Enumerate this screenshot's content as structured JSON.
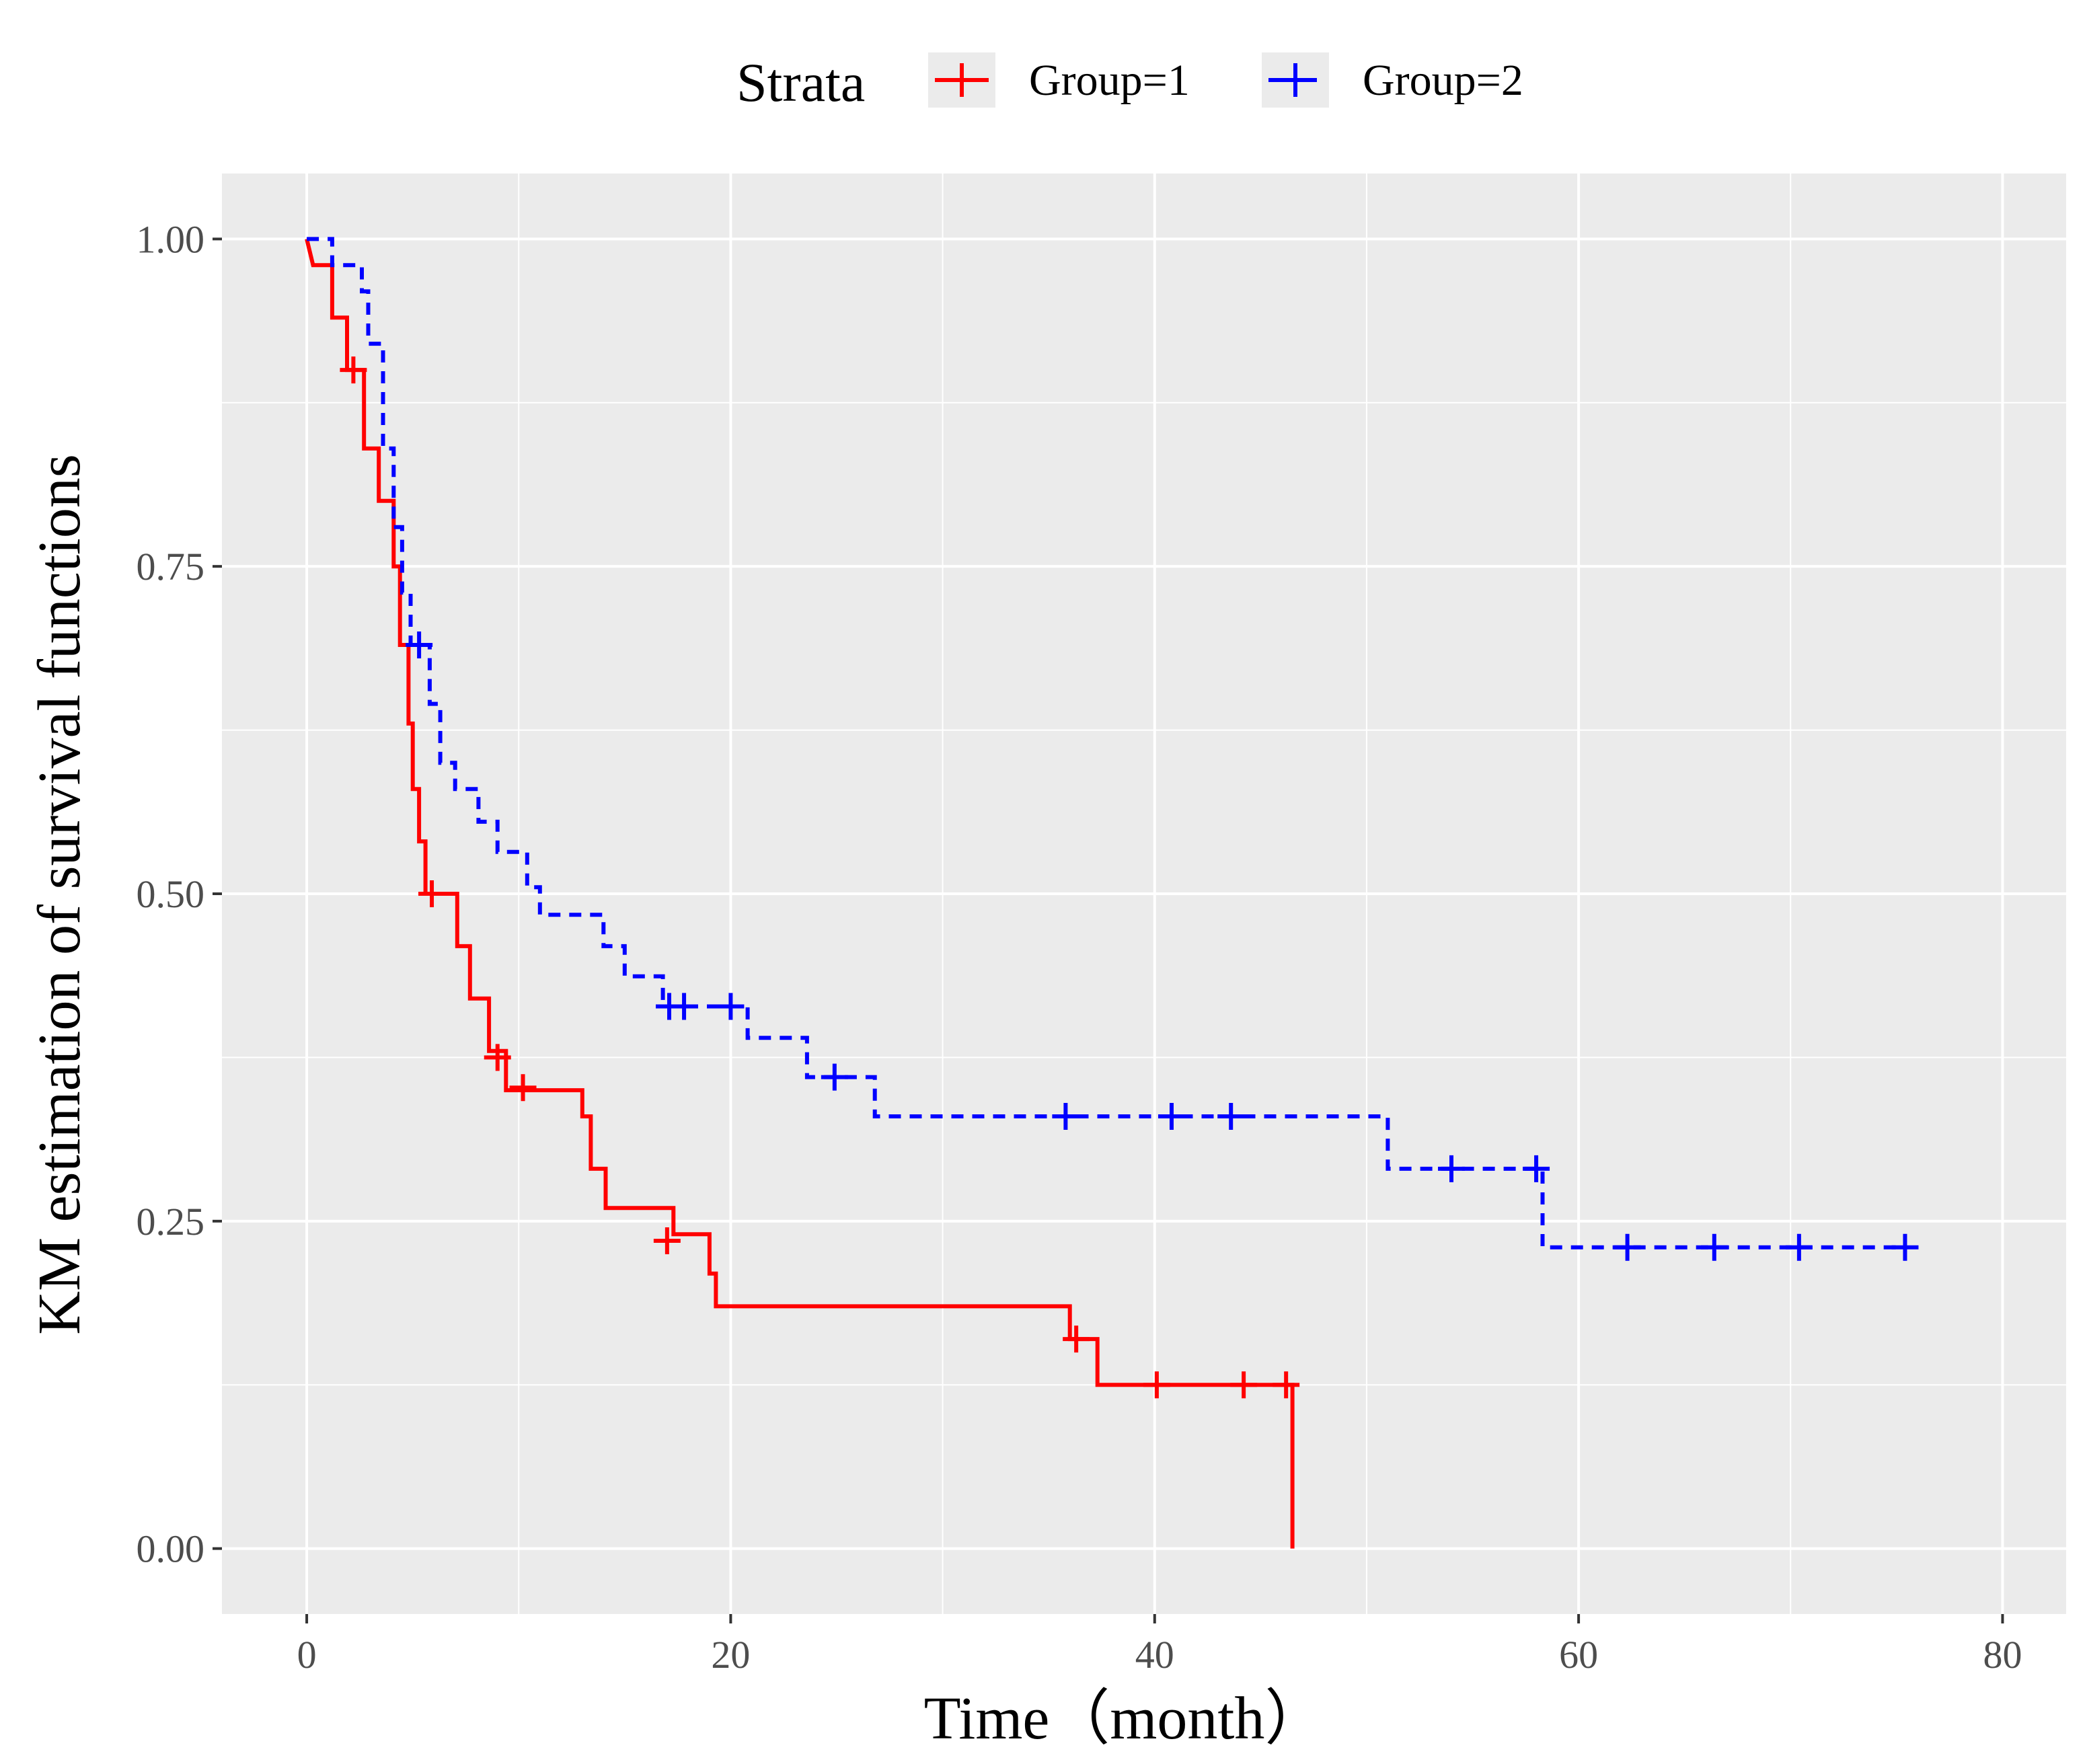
{
  "chart_data": {
    "type": "line",
    "subtype": "kaplan-meier step",
    "title": "",
    "xlabel": "Time（month）",
    "ylabel": "KM estimation of survival functions",
    "xlim": [
      -4,
      83
    ],
    "ylim": [
      -0.05,
      1.05
    ],
    "xticks": [
      0,
      20,
      40,
      60,
      80
    ],
    "xtick_labels": [
      "0",
      "20",
      "40",
      "60",
      "80"
    ],
    "yticks": [
      0,
      0.25,
      0.5,
      0.75,
      1.0
    ],
    "ytick_labels": [
      "0.00",
      "0.25",
      "0.50",
      "0.75",
      "1.00"
    ],
    "grid": true,
    "legend": {
      "title": "Strata",
      "position": "top",
      "entries": [
        "Group=1",
        "Group=2"
      ]
    },
    "series": [
      {
        "name": "Group=1",
        "color": "#ff0000",
        "linestyle": "solid",
        "steps": [
          [
            0,
            1.0
          ],
          [
            0.3,
            0.98
          ],
          [
            1.2,
            0.98
          ],
          [
            1.2,
            0.94
          ],
          [
            1.9,
            0.94
          ],
          [
            1.9,
            0.9
          ],
          [
            2.7,
            0.9
          ],
          [
            2.7,
            0.84
          ],
          [
            3.4,
            0.84
          ],
          [
            3.4,
            0.8
          ],
          [
            4.1,
            0.8
          ],
          [
            4.1,
            0.75
          ],
          [
            4.4,
            0.75
          ],
          [
            4.4,
            0.69
          ],
          [
            4.8,
            0.69
          ],
          [
            4.8,
            0.63
          ],
          [
            5.0,
            0.63
          ],
          [
            5.0,
            0.58
          ],
          [
            5.3,
            0.58
          ],
          [
            5.3,
            0.54
          ],
          [
            5.6,
            0.54
          ],
          [
            5.6,
            0.5
          ],
          [
            7.1,
            0.5
          ],
          [
            7.1,
            0.46
          ],
          [
            7.7,
            0.46
          ],
          [
            7.7,
            0.42
          ],
          [
            8.6,
            0.42
          ],
          [
            8.6,
            0.38
          ],
          [
            9.4,
            0.38
          ],
          [
            9.4,
            0.35
          ],
          [
            13.0,
            0.35
          ],
          [
            13.0,
            0.33
          ],
          [
            13.4,
            0.33
          ],
          [
            13.4,
            0.29
          ],
          [
            14.1,
            0.29
          ],
          [
            14.1,
            0.26
          ],
          [
            17.3,
            0.26
          ],
          [
            17.3,
            0.24
          ],
          [
            19.0,
            0.24
          ],
          [
            19.0,
            0.21
          ],
          [
            19.3,
            0.21
          ],
          [
            19.3,
            0.185
          ],
          [
            36.0,
            0.185
          ],
          [
            36.0,
            0.16
          ],
          [
            37.3,
            0.16
          ],
          [
            37.3,
            0.125
          ],
          [
            46.5,
            0.125
          ],
          [
            46.5,
            0.0
          ]
        ],
        "censored": [
          [
            2.2,
            0.9
          ],
          [
            5.9,
            0.5
          ],
          [
            9.0,
            0.375
          ],
          [
            10.2,
            0.352
          ],
          [
            17.0,
            0.235
          ],
          [
            36.3,
            0.16
          ],
          [
            40.1,
            0.125
          ],
          [
            44.2,
            0.125
          ],
          [
            46.2,
            0.125
          ]
        ]
      },
      {
        "name": "Group=2",
        "color": "#0000ff",
        "linestyle": "dashed",
        "steps": [
          [
            0,
            1.0
          ],
          [
            1.2,
            1.0
          ],
          [
            1.2,
            0.98
          ],
          [
            2.6,
            0.98
          ],
          [
            2.6,
            0.96
          ],
          [
            2.9,
            0.96
          ],
          [
            2.9,
            0.92
          ],
          [
            3.6,
            0.92
          ],
          [
            3.6,
            0.84
          ],
          [
            4.1,
            0.84
          ],
          [
            4.1,
            0.78
          ],
          [
            4.5,
            0.78
          ],
          [
            4.5,
            0.73
          ],
          [
            4.9,
            0.73
          ],
          [
            4.9,
            0.69
          ],
          [
            5.8,
            0.69
          ],
          [
            5.8,
            0.645
          ],
          [
            6.3,
            0.645
          ],
          [
            6.3,
            0.6
          ],
          [
            7.0,
            0.6
          ],
          [
            7.0,
            0.58
          ],
          [
            8.1,
            0.58
          ],
          [
            8.1,
            0.555
          ],
          [
            9.0,
            0.555
          ],
          [
            9.0,
            0.532
          ],
          [
            10.4,
            0.532
          ],
          [
            10.4,
            0.505
          ],
          [
            11.0,
            0.505
          ],
          [
            11.0,
            0.484
          ],
          [
            14.0,
            0.484
          ],
          [
            14.0,
            0.46
          ],
          [
            15.0,
            0.46
          ],
          [
            15.0,
            0.437
          ],
          [
            16.8,
            0.437
          ],
          [
            16.8,
            0.414
          ],
          [
            20.8,
            0.414
          ],
          [
            20.8,
            0.39
          ],
          [
            23.6,
            0.39
          ],
          [
            23.6,
            0.36
          ],
          [
            26.8,
            0.36
          ],
          [
            26.8,
            0.33
          ],
          [
            51.0,
            0.33
          ],
          [
            51.0,
            0.29
          ],
          [
            58.3,
            0.29
          ],
          [
            58.3,
            0.23
          ],
          [
            75.5,
            0.23
          ]
        ],
        "censored": [
          [
            5.3,
            0.69
          ],
          [
            17.1,
            0.414
          ],
          [
            17.8,
            0.414
          ],
          [
            20.0,
            0.414
          ],
          [
            24.9,
            0.36
          ],
          [
            35.8,
            0.33
          ],
          [
            40.8,
            0.33
          ],
          [
            43.6,
            0.33
          ],
          [
            54.0,
            0.29
          ],
          [
            58.0,
            0.29
          ],
          [
            62.3,
            0.23
          ],
          [
            66.4,
            0.23
          ],
          [
            70.4,
            0.23
          ],
          [
            75.4,
            0.23
          ]
        ]
      }
    ]
  }
}
